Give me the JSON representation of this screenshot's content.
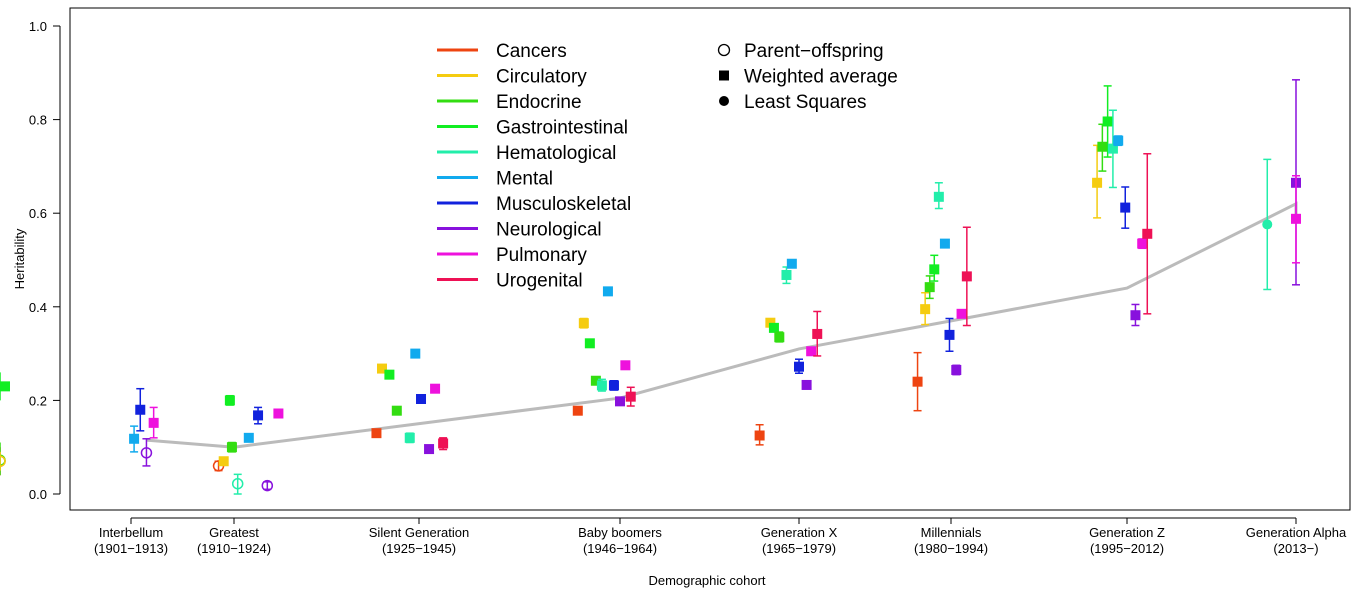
{
  "chart_data": {
    "type": "scatter",
    "title": "",
    "xlabel": "Demographic cohort",
    "ylabel": "Heritability",
    "ylim": [
      -0.05,
      1.02
    ],
    "yticks": [
      0.0,
      0.2,
      0.4,
      0.6,
      0.8,
      1.0
    ],
    "ytick_labels": [
      "0.0",
      "0.2",
      "0.4",
      "0.6",
      "0.8",
      "1.0"
    ],
    "categories": [
      {
        "name": "Interbellum",
        "years": "(1901−1913)"
      },
      {
        "name": "Greatest",
        "years": "(1910−1924)"
      },
      {
        "name": "Silent Generation",
        "years": "(1925−1945)"
      },
      {
        "name": "Baby boomers",
        "years": "(1946−1964)"
      },
      {
        "name": "Generation X",
        "years": "(1965−1979)"
      },
      {
        "name": "Millennials",
        "years": "(1980−1994)"
      },
      {
        "name": "Generation Z",
        "years": "(1995−2012)"
      },
      {
        "name": "Generation Alpha",
        "years": "(2013−)"
      }
    ],
    "grid": false,
    "legend_placement": "top-center",
    "series": [
      {
        "name": "Cancers",
        "color": "#ee4411"
      },
      {
        "name": "Circulatory",
        "color": "#f5cc10"
      },
      {
        "name": "Endocrine",
        "color": "#33dd11"
      },
      {
        "name": "Gastrointestinal",
        "color": "#11ee22"
      },
      {
        "name": "Hematological",
        "color": "#22eeaa"
      },
      {
        "name": "Mental",
        "color": "#11aaee"
      },
      {
        "name": "Musculoskeletal",
        "color": "#1122dd"
      },
      {
        "name": "Neurological",
        "color": "#8811dd"
      },
      {
        "name": "Pulmonary",
        "color": "#ee11dd"
      },
      {
        "name": "Urogenital",
        "color": "#ee1155"
      }
    ],
    "method_legend": [
      {
        "name": "Parent−offspring",
        "marker": "open-circle"
      },
      {
        "name": "Weighted average",
        "marker": "square"
      },
      {
        "name": "Least Squares",
        "marker": "filled-circle"
      }
    ],
    "trend_line": {
      "color": "#bbbbbb",
      "points": [
        [
          0.15,
          0.115
        ],
        [
          1.0,
          0.1
        ],
        [
          3.0,
          0.205
        ],
        [
          4.0,
          0.31
        ],
        [
          5.0,
          0.37
        ],
        [
          6.0,
          0.44
        ],
        [
          7.0,
          0.62
        ],
        [
          8.0,
          0.592
        ]
      ]
    },
    "points": [
      {
        "c": 0,
        "dx": -0.11,
        "s": 0,
        "m": "open",
        "y": 0.07,
        "lo": 0.04,
        "hi": 0.1
      },
      {
        "c": 0,
        "dx": -0.03,
        "s": 2,
        "m": "open",
        "y": 0.072,
        "lo": 0.04,
        "hi": 0.11
      },
      {
        "c": 0,
        "dx": -0.07,
        "s": 1,
        "m": "open",
        "y": 0.07,
        "lo": 0.05,
        "hi": 0.09
      },
      {
        "c": 0,
        "dx": -0.06,
        "s": 3,
        "m": "square",
        "y": 0.23,
        "lo": 0.2,
        "hi": 0.26
      },
      {
        "c": 0,
        "dx": 0.03,
        "s": 5,
        "m": "square",
        "y": 0.118,
        "lo": 0.09,
        "hi": 0.145
      },
      {
        "c": 0,
        "dx": 0.09,
        "s": 6,
        "m": "square",
        "y": 0.18,
        "lo": 0.135,
        "hi": 0.225
      },
      {
        "c": 0,
        "dx": 0.15,
        "s": 7,
        "m": "open",
        "y": 0.088,
        "lo": 0.06,
        "hi": 0.118
      },
      {
        "c": 0,
        "dx": 0.22,
        "s": 8,
        "m": "square",
        "y": 0.152,
        "lo": 0.12,
        "hi": 0.185
      },
      {
        "c": 1,
        "dx": -0.15,
        "s": 0,
        "m": "open",
        "y": 0.06,
        "lo": 0.05,
        "hi": 0.07
      },
      {
        "c": 1,
        "dx": -0.1,
        "s": 1,
        "m": "square",
        "y": 0.07,
        "lo": 0.062,
        "hi": 0.078
      },
      {
        "c": 1,
        "dx": -0.04,
        "s": 3,
        "m": "square",
        "y": 0.2,
        "lo": 0.19,
        "hi": 0.21
      },
      {
        "c": 1,
        "dx": -0.02,
        "s": 2,
        "m": "square",
        "y": 0.1,
        "lo": 0.09,
        "hi": 0.11
      },
      {
        "c": 1,
        "dx": 0.02,
        "s": 4,
        "m": "open",
        "y": 0.022,
        "lo": 0.0,
        "hi": 0.042
      },
      {
        "c": 1,
        "dx": 0.08,
        "s": 5,
        "m": "square",
        "y": 0.12,
        "lo": 0.115,
        "hi": 0.125
      },
      {
        "c": 1,
        "dx": 0.13,
        "s": 6,
        "m": "square",
        "y": 0.168,
        "lo": 0.15,
        "hi": 0.185
      },
      {
        "c": 1,
        "dx": 0.18,
        "s": 7,
        "m": "open",
        "y": 0.018,
        "lo": 0.01,
        "hi": 0.026
      },
      {
        "c": 1,
        "dx": 0.24,
        "s": 8,
        "m": "square",
        "y": 0.172,
        "lo": 0.165,
        "hi": 0.18
      },
      {
        "c": 2,
        "dx": -0.23,
        "s": 0,
        "m": "square",
        "y": 0.13,
        "lo": 0.125,
        "hi": 0.135
      },
      {
        "c": 2,
        "dx": -0.2,
        "s": 1,
        "m": "square",
        "y": 0.268,
        "lo": 0.26,
        "hi": 0.276
      },
      {
        "c": 2,
        "dx": -0.16,
        "s": 3,
        "m": "square",
        "y": 0.255,
        "lo": 0.248,
        "hi": 0.262
      },
      {
        "c": 2,
        "dx": -0.12,
        "s": 2,
        "m": "square",
        "y": 0.178,
        "lo": 0.172,
        "hi": 0.184
      },
      {
        "c": 2,
        "dx": -0.05,
        "s": 4,
        "m": "square",
        "y": 0.12,
        "lo": 0.11,
        "hi": 0.13
      },
      {
        "c": 2,
        "dx": -0.02,
        "s": 5,
        "m": "square",
        "y": 0.3,
        "lo": 0.295,
        "hi": 0.305
      },
      {
        "c": 2,
        "dx": 0.01,
        "s": 6,
        "m": "square",
        "y": 0.203,
        "lo": 0.197,
        "hi": 0.209
      },
      {
        "c": 2,
        "dx": 0.05,
        "s": 7,
        "m": "square",
        "y": 0.096,
        "lo": 0.091,
        "hi": 0.101
      },
      {
        "c": 2,
        "dx": 0.08,
        "s": 8,
        "m": "square",
        "y": 0.225,
        "lo": 0.22,
        "hi": 0.23
      },
      {
        "c": 2,
        "dx": 0.12,
        "s": 9,
        "m": "square",
        "y": 0.108,
        "lo": 0.095,
        "hi": 0.12
      },
      {
        "c": 3,
        "dx": -0.21,
        "s": 0,
        "m": "square",
        "y": 0.178,
        "lo": 0.174,
        "hi": 0.182
      },
      {
        "c": 3,
        "dx": -0.18,
        "s": 1,
        "m": "square",
        "y": 0.365,
        "lo": 0.355,
        "hi": 0.375
      },
      {
        "c": 3,
        "dx": -0.15,
        "s": 3,
        "m": "square",
        "y": 0.322,
        "lo": 0.316,
        "hi": 0.328
      },
      {
        "c": 3,
        "dx": -0.12,
        "s": 2,
        "m": "square",
        "y": 0.242,
        "lo": 0.236,
        "hi": 0.248
      },
      {
        "c": 3,
        "dx": -0.09,
        "s": 4,
        "m": "square",
        "y": 0.232,
        "lo": 0.22,
        "hi": 0.245
      },
      {
        "c": 3,
        "dx": -0.06,
        "s": 5,
        "m": "square",
        "y": 0.433,
        "lo": 0.43,
        "hi": 0.436
      },
      {
        "c": 3,
        "dx": -0.03,
        "s": 6,
        "m": "square",
        "y": 0.232,
        "lo": 0.222,
        "hi": 0.242
      },
      {
        "c": 3,
        "dx": 0.0,
        "s": 7,
        "m": "square",
        "y": 0.198,
        "lo": 0.194,
        "hi": 0.202
      },
      {
        "c": 3,
        "dx": 0.03,
        "s": 8,
        "m": "square",
        "y": 0.275,
        "lo": 0.27,
        "hi": 0.28
      },
      {
        "c": 3,
        "dx": 0.06,
        "s": 9,
        "m": "square",
        "y": 0.208,
        "lo": 0.188,
        "hi": 0.228
      },
      {
        "c": 4,
        "dx": -0.22,
        "s": 0,
        "m": "square",
        "y": 0.125,
        "lo": 0.105,
        "hi": 0.148
      },
      {
        "c": 4,
        "dx": -0.16,
        "s": 1,
        "m": "square",
        "y": 0.366,
        "lo": 0.358,
        "hi": 0.374
      },
      {
        "c": 4,
        "dx": -0.14,
        "s": 3,
        "m": "square",
        "y": 0.355,
        "lo": 0.348,
        "hi": 0.362
      },
      {
        "c": 4,
        "dx": -0.11,
        "s": 2,
        "m": "square",
        "y": 0.335,
        "lo": 0.325,
        "hi": 0.346
      },
      {
        "c": 4,
        "dx": -0.07,
        "s": 4,
        "m": "square",
        "y": 0.468,
        "lo": 0.45,
        "hi": 0.485
      },
      {
        "c": 4,
        "dx": -0.04,
        "s": 5,
        "m": "square",
        "y": 0.492,
        "lo": 0.486,
        "hi": 0.498
      },
      {
        "c": 4,
        "dx": 0.0,
        "s": 6,
        "m": "square",
        "y": 0.272,
        "lo": 0.258,
        "hi": 0.288
      },
      {
        "c": 4,
        "dx": 0.05,
        "s": 7,
        "m": "square",
        "y": 0.233,
        "lo": 0.228,
        "hi": 0.238
      },
      {
        "c": 4,
        "dx": 0.08,
        "s": 8,
        "m": "square",
        "y": 0.305,
        "lo": 0.3,
        "hi": 0.31
      },
      {
        "c": 4,
        "dx": 0.12,
        "s": 9,
        "m": "square",
        "y": 0.342,
        "lo": 0.295,
        "hi": 0.39
      },
      {
        "c": 5,
        "dx": -0.22,
        "s": 0,
        "m": "square",
        "y": 0.24,
        "lo": 0.178,
        "hi": 0.302
      },
      {
        "c": 5,
        "dx": -0.17,
        "s": 1,
        "m": "square",
        "y": 0.395,
        "lo": 0.362,
        "hi": 0.43
      },
      {
        "c": 5,
        "dx": -0.14,
        "s": 2,
        "m": "square",
        "y": 0.442,
        "lo": 0.418,
        "hi": 0.466
      },
      {
        "c": 5,
        "dx": -0.11,
        "s": 3,
        "m": "square",
        "y": 0.48,
        "lo": 0.455,
        "hi": 0.51
      },
      {
        "c": 5,
        "dx": -0.08,
        "s": 4,
        "m": "square",
        "y": 0.635,
        "lo": 0.61,
        "hi": 0.665
      },
      {
        "c": 5,
        "dx": -0.04,
        "s": 5,
        "m": "square",
        "y": 0.535,
        "lo": 0.53,
        "hi": 0.54
      },
      {
        "c": 5,
        "dx": -0.01,
        "s": 6,
        "m": "square",
        "y": 0.34,
        "lo": 0.305,
        "hi": 0.375
      },
      {
        "c": 5,
        "dx": 0.03,
        "s": 7,
        "m": "square",
        "y": 0.265,
        "lo": 0.255,
        "hi": 0.275
      },
      {
        "c": 5,
        "dx": 0.06,
        "s": 8,
        "m": "square",
        "y": 0.385,
        "lo": 0.38,
        "hi": 0.39
      },
      {
        "c": 5,
        "dx": 0.09,
        "s": 9,
        "m": "square",
        "y": 0.465,
        "lo": 0.36,
        "hi": 0.57
      },
      {
        "c": 6,
        "dx": -0.17,
        "s": 1,
        "m": "square",
        "y": 0.665,
        "lo": 0.59,
        "hi": 0.745
      },
      {
        "c": 6,
        "dx": -0.14,
        "s": 2,
        "m": "square",
        "y": 0.742,
        "lo": 0.69,
        "hi": 0.79
      },
      {
        "c": 6,
        "dx": -0.11,
        "s": 3,
        "m": "square",
        "y": 0.796,
        "lo": 0.72,
        "hi": 0.872
      },
      {
        "c": 6,
        "dx": -0.08,
        "s": 4,
        "m": "square",
        "y": 0.738,
        "lo": 0.655,
        "hi": 0.82
      },
      {
        "c": 6,
        "dx": -0.05,
        "s": 5,
        "m": "square",
        "y": 0.755,
        "lo": 0.745,
        "hi": 0.765
      },
      {
        "c": 6,
        "dx": -0.01,
        "s": 6,
        "m": "square",
        "y": 0.612,
        "lo": 0.568,
        "hi": 0.656
      },
      {
        "c": 6,
        "dx": 0.05,
        "s": 7,
        "m": "square",
        "y": 0.382,
        "lo": 0.36,
        "hi": 0.405
      },
      {
        "c": 6,
        "dx": 0.09,
        "s": 8,
        "m": "square",
        "y": 0.535,
        "lo": 0.525,
        "hi": 0.545
      },
      {
        "c": 6,
        "dx": 0.12,
        "s": 9,
        "m": "square",
        "y": 0.556,
        "lo": 0.385,
        "hi": 0.727
      },
      {
        "c": 7,
        "dx": -0.17,
        "s": 4,
        "m": "filled",
        "y": 0.576,
        "lo": 0.437,
        "hi": 0.715
      },
      {
        "c": 7,
        "dx": 0.04,
        "s": 7,
        "m": "square",
        "y": 0.665,
        "lo": 0.447,
        "hi": 0.885
      },
      {
        "c": 7,
        "dx": 0.09,
        "s": 8,
        "m": "square",
        "y": 0.588,
        "lo": 0.494,
        "hi": 0.68
      }
    ]
  }
}
